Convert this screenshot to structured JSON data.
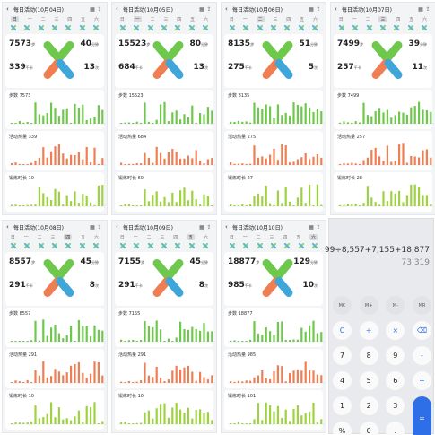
{
  "panels": [
    {
      "title": "每日活动(10月04日)",
      "steps": "7573",
      "stepsUnit": "步",
      "cal": "339",
      "calUnit": "千卡",
      "act": "40",
      "actUnit": "分钟",
      "stand": "13",
      "standUnit": "次",
      "cardA": "步数 7573",
      "cardB": "活动热量 339",
      "cardC": "锻炼时长 10"
    },
    {
      "title": "每日活动(10月05日)",
      "steps": "15523",
      "stepsUnit": "步",
      "cal": "684",
      "calUnit": "千卡",
      "act": "80",
      "actUnit": "分钟",
      "stand": "13",
      "standUnit": "次",
      "cardA": "步数 15523",
      "cardB": "活动热量 684",
      "cardC": "锻炼时长 60"
    },
    {
      "title": "每日活动(10月06日)",
      "steps": "8135",
      "stepsUnit": "步",
      "cal": "275",
      "calUnit": "千卡",
      "act": "51",
      "actUnit": "分钟",
      "stand": "5",
      "standUnit": "次",
      "cardA": "步数 8135",
      "cardB": "活动热量 275",
      "cardC": "锻炼时长 27"
    },
    {
      "title": "每日活动(10月07日)",
      "steps": "7499",
      "stepsUnit": "步",
      "cal": "257",
      "calUnit": "千卡",
      "act": "39",
      "actUnit": "分钟",
      "stand": "11",
      "standUnit": "次",
      "cardA": "步数 7499",
      "cardB": "活动热量 257",
      "cardC": "锻炼时长 28"
    },
    {
      "title": "每日活动(10月08日)",
      "steps": "8557",
      "stepsUnit": "步",
      "cal": "291",
      "calUnit": "千卡",
      "act": "45",
      "actUnit": "分钟",
      "stand": "8",
      "standUnit": "次",
      "cardA": "步数 8557",
      "cardB": "活动热量 291",
      "cardC": "锻炼时长 10"
    },
    {
      "title": "每日活动(10月09日)",
      "steps": "7155",
      "stepsUnit": "步",
      "cal": "291",
      "calUnit": "千卡",
      "act": "45",
      "actUnit": "分钟",
      "stand": "8",
      "standUnit": "次",
      "cardA": "步数 7155",
      "cardB": "活动热量 291",
      "cardC": "锻炼时长 10"
    },
    {
      "title": "每日活动(10月10日)",
      "steps": "18877",
      "stepsUnit": "步",
      "cal": "985",
      "calUnit": "千卡",
      "act": "129",
      "actUnit": "分钟",
      "stand": "10",
      "standUnit": "次",
      "cardA": "步数 18877",
      "cardB": "活动热量 985",
      "cardC": "锻炼时长 101"
    }
  ],
  "week": [
    "日",
    "一",
    "二",
    "三",
    "四",
    "五",
    "六"
  ],
  "calculator": {
    "expression": "99÷8,557+7,155+18,877",
    "result": "73,319",
    "rows": [
      [
        "MC",
        "M+",
        "M-",
        "MR"
      ],
      [
        "C",
        "÷",
        "×",
        "⌫"
      ],
      [
        "7",
        "8",
        "9",
        "-"
      ],
      [
        "4",
        "5",
        "6",
        "+"
      ],
      [
        "1",
        "2",
        "3",
        ""
      ],
      [
        "%",
        "0",
        ".",
        ""
      ]
    ],
    "equals": "="
  },
  "colors": {
    "green": "#6ec84c",
    "orange": "#ef7e52",
    "blue": "#3ea6d8",
    "accent": "#2e6ee6"
  }
}
